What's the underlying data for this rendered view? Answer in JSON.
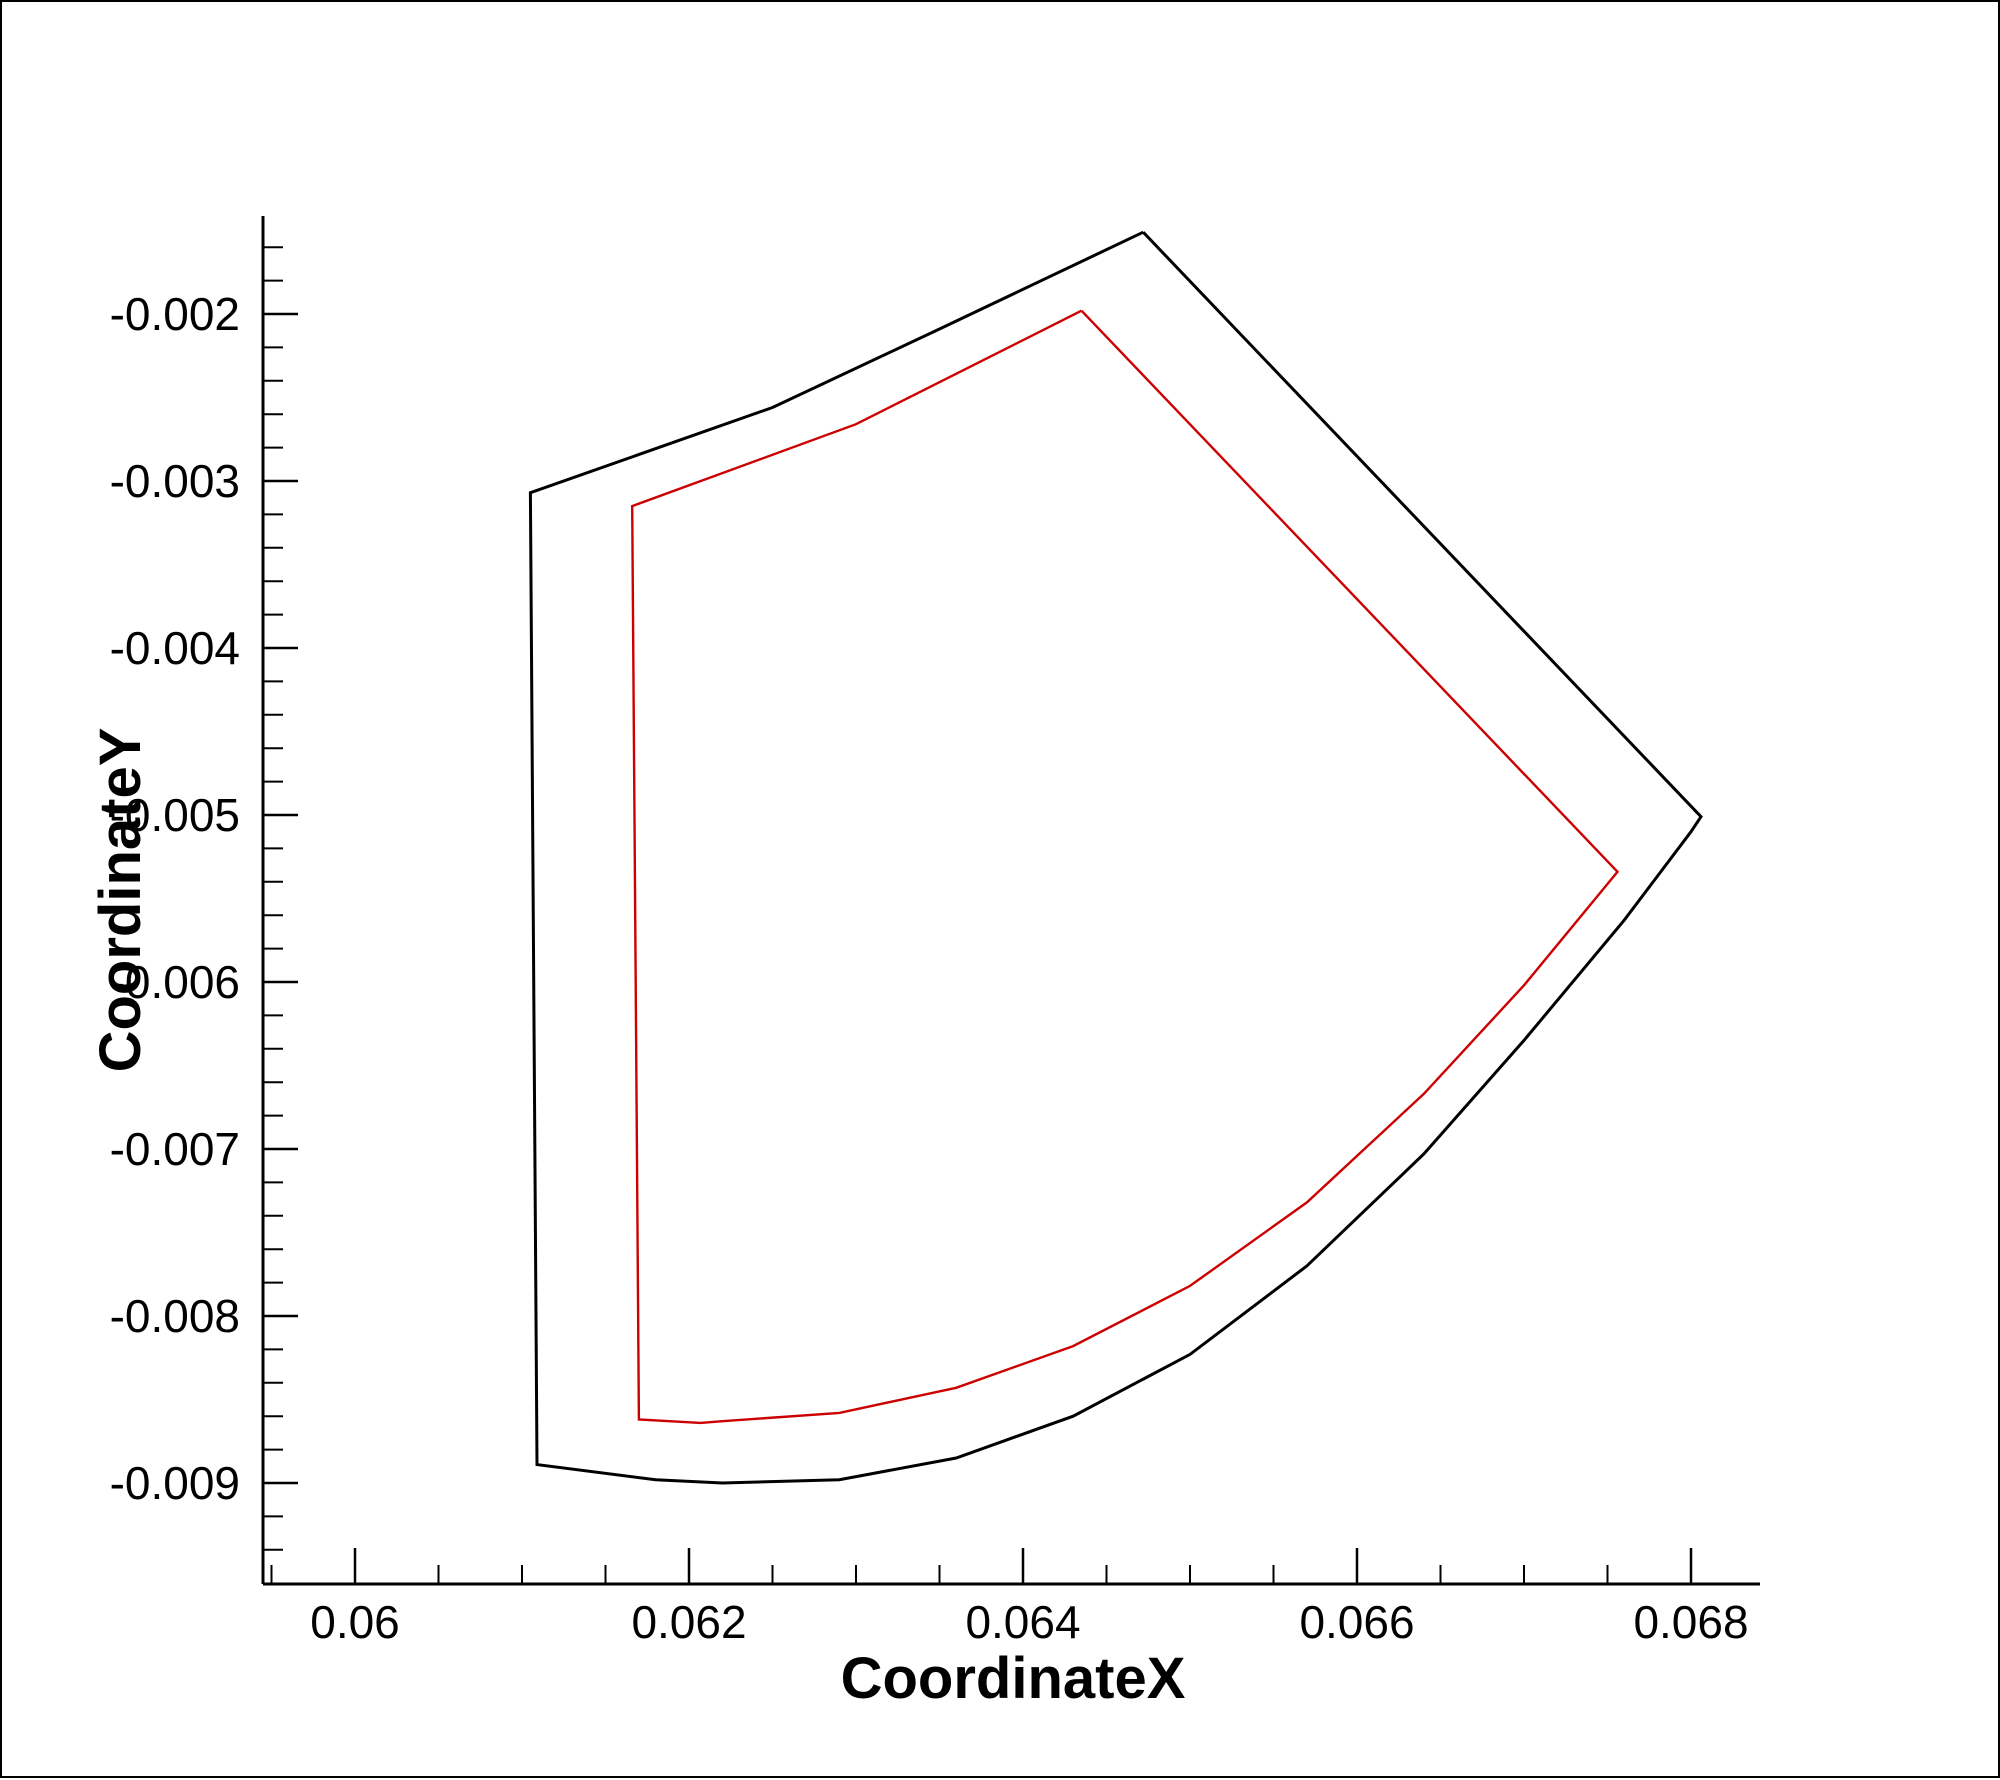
{
  "chart_data": {
    "type": "line",
    "title": "",
    "xlabel": "CoordinateX",
    "ylabel": "CoordinateY",
    "xlim": [
      0.0595,
      0.0684
    ],
    "ylim": [
      -0.0096,
      -0.0014
    ],
    "x_major_ticks": [
      0.06,
      0.062,
      0.064,
      0.066,
      0.068
    ],
    "x_tick_labels": [
      "0.06",
      "0.062",
      "0.064",
      "0.066",
      "0.068"
    ],
    "x_minor_step": 0.0005,
    "y_major_ticks": [
      -0.002,
      -0.003,
      -0.004,
      -0.005,
      -0.006,
      -0.007,
      -0.008,
      -0.009
    ],
    "y_tick_labels": [
      "-0.002",
      "-0.003",
      "-0.004",
      "-0.005",
      "-0.006",
      "-0.007",
      "-0.008",
      "-0.009"
    ],
    "y_minor_step": 0.0002,
    "grid": false,
    "series": [
      {
        "color": "#000000",
        "x": [
          0.06472,
          0.06806,
          0.068,
          0.0676,
          0.067,
          0.0664,
          0.0657,
          0.065,
          0.0643,
          0.0636,
          0.0629,
          0.0622,
          0.0618,
          0.06109,
          0.06105,
          0.0625,
          0.0635,
          0.06472
        ],
        "y": [
          -0.00151,
          -0.00501,
          -0.0051,
          -0.00563,
          -0.00635,
          -0.00703,
          -0.0077,
          -0.00823,
          -0.0086,
          -0.00885,
          -0.00898,
          -0.009,
          -0.00898,
          -0.00889,
          -0.00307,
          -0.00256,
          -0.00209,
          -0.00151
        ]
      },
      {
        "color": "#cc0000",
        "x": [
          0.06435,
          0.06756,
          0.067,
          0.0664,
          0.0657,
          0.065,
          0.0643,
          0.0636,
          0.0629,
          0.0622,
          0.06207,
          0.0617,
          0.06166,
          0.063,
          0.06435
        ],
        "y": [
          -0.00198,
          -0.00534,
          -0.00602,
          -0.00667,
          -0.00732,
          -0.00782,
          -0.00818,
          -0.00843,
          -0.00858,
          -0.00863,
          -0.00864,
          -0.00862,
          -0.00315,
          -0.00266,
          -0.00198
        ]
      }
    ]
  }
}
